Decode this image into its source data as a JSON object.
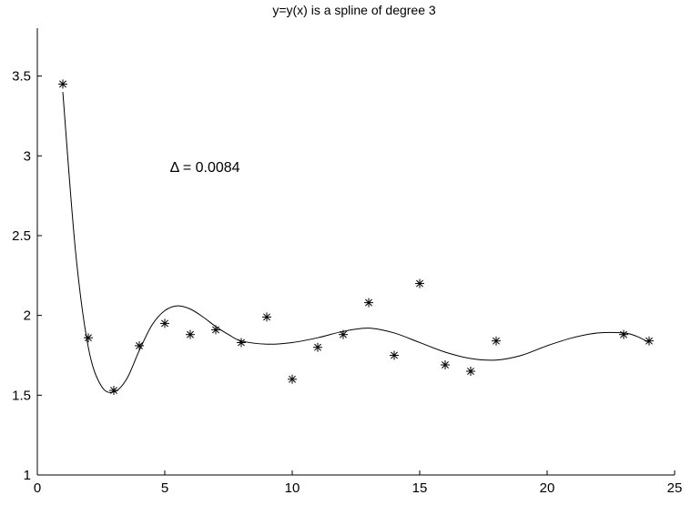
{
  "chart_data": {
    "type": "scatter",
    "title": "y=y(x) is a spline of degree 3",
    "xlabel": "",
    "ylabel": "",
    "xlim": [
      0,
      25
    ],
    "ylim": [
      1,
      3.8
    ],
    "grid": false,
    "x_ticks": [
      0,
      5,
      10,
      15,
      20,
      25
    ],
    "y_ticks": [
      1,
      1.5,
      2,
      2.5,
      3,
      3.5
    ],
    "x_tick_labels": [
      "0",
      "5",
      "10",
      "15",
      "20",
      "25"
    ],
    "y_tick_labels": [
      "1",
      "1.5",
      "2",
      "2.5",
      "3",
      "3.5"
    ],
    "annotation": "Δ = 0.0084",
    "annotation_x": 5.2,
    "annotation_y": 2.9,
    "series": [
      {
        "kind": "points",
        "marker": "asterisk",
        "x": [
          1,
          2,
          3,
          4,
          5,
          6,
          7,
          8,
          9,
          10,
          11,
          12,
          13,
          14,
          15,
          16,
          17,
          18,
          23,
          24
        ],
        "y": [
          3.45,
          1.86,
          1.53,
          1.81,
          1.95,
          1.88,
          1.91,
          1.83,
          1.99,
          1.6,
          1.8,
          1.88,
          2.08,
          1.75,
          2.2,
          1.69,
          1.65,
          1.84,
          1.88,
          1.84
        ]
      },
      {
        "kind": "curve",
        "x": [
          1,
          1.5,
          2,
          2.5,
          3,
          3.5,
          4,
          4.5,
          5,
          5.5,
          6,
          6.5,
          7,
          7.5,
          8,
          9,
          10,
          11,
          12,
          13,
          14,
          15,
          16,
          17,
          18,
          19,
          20,
          21,
          22,
          23,
          23.5,
          24
        ],
        "y": [
          3.4,
          2.4,
          1.8,
          1.56,
          1.52,
          1.6,
          1.78,
          1.94,
          2.03,
          2.06,
          2.04,
          1.99,
          1.93,
          1.88,
          1.84,
          1.82,
          1.83,
          1.86,
          1.9,
          1.92,
          1.89,
          1.83,
          1.77,
          1.73,
          1.72,
          1.75,
          1.81,
          1.86,
          1.89,
          1.89,
          1.87,
          1.83
        ]
      }
    ]
  }
}
